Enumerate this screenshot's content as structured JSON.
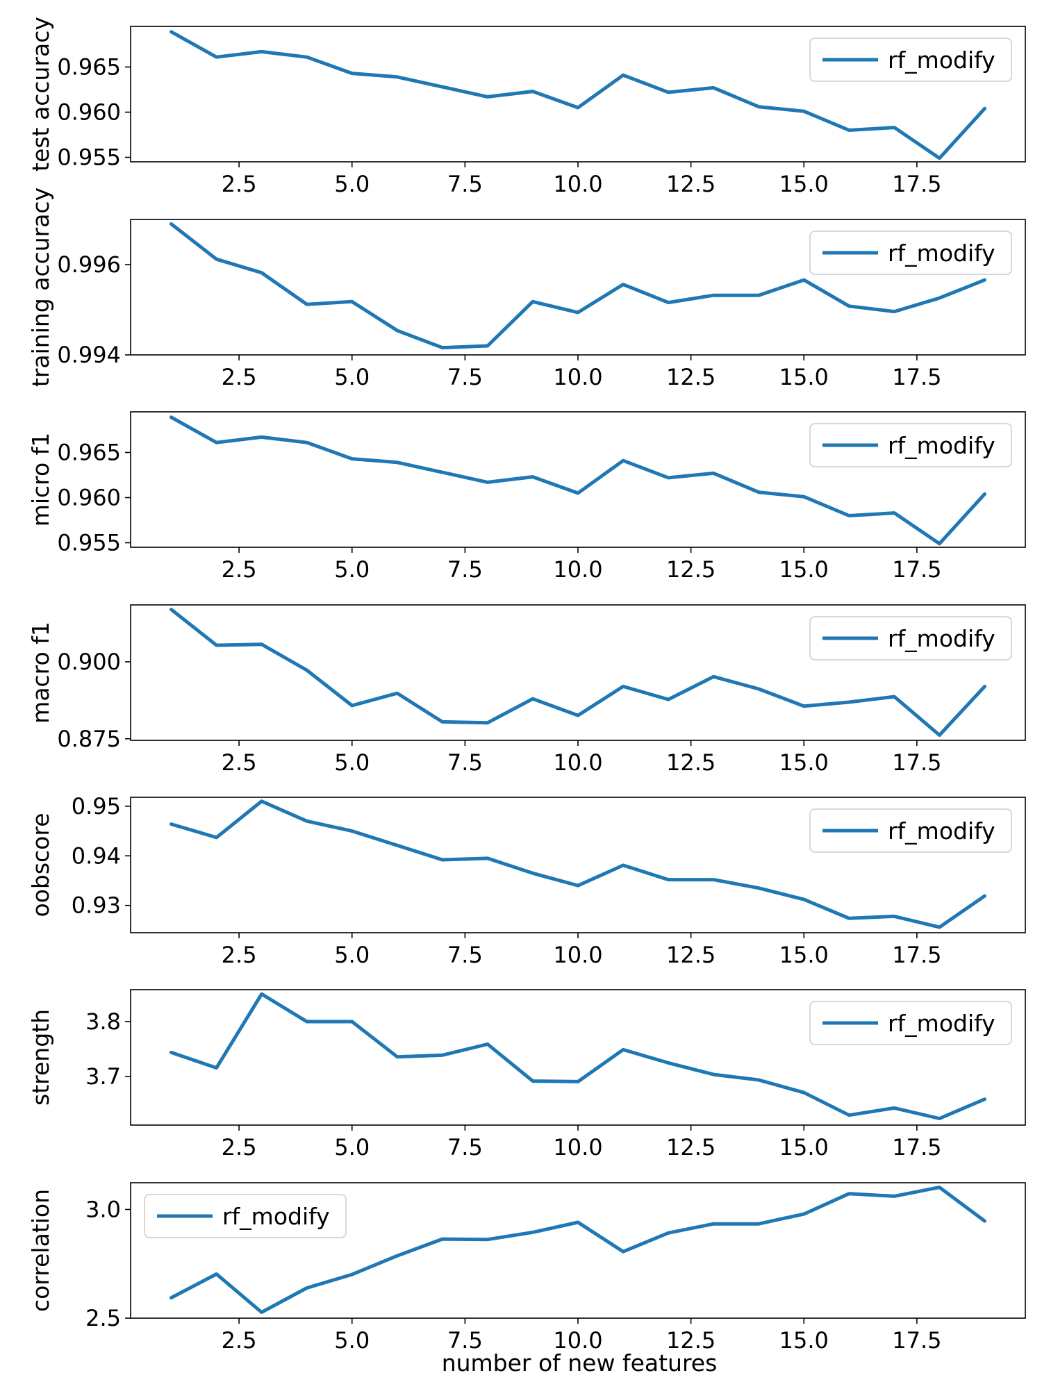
{
  "figure": {
    "xlabel": "number of new features"
  },
  "chart_data": [
    {
      "type": "line",
      "ylabel": "test accuracy",
      "xlim": [
        0.1,
        19.9
      ],
      "ylim": [
        0.9545,
        0.9695
      ],
      "xticks": [
        2.5,
        5.0,
        7.5,
        10.0,
        12.5,
        15.0,
        17.5
      ],
      "xtick_labels": [
        "2.5",
        "5.0",
        "7.5",
        "10.0",
        "12.5",
        "15.0",
        "17.5"
      ],
      "yticks": [
        0.955,
        0.96,
        0.965
      ],
      "ytick_labels": [
        "0.955",
        "0.960",
        "0.965"
      ],
      "legend_position": "upper right",
      "grid": false,
      "series": [
        {
          "name": "rf_modify",
          "color": "#1f77b4",
          "x": [
            1,
            2,
            3,
            4,
            5,
            6,
            7,
            8,
            9,
            10,
            11,
            12,
            13,
            14,
            15,
            16,
            17,
            18,
            19
          ],
          "y": [
            0.9689,
            0.9661,
            0.9667,
            0.9661,
            0.9643,
            0.9639,
            0.9628,
            0.9617,
            0.9623,
            0.9605,
            0.9641,
            0.9622,
            0.9627,
            0.9606,
            0.9601,
            0.958,
            0.9583,
            0.9549,
            0.9604
          ]
        }
      ]
    },
    {
      "type": "line",
      "ylabel": "training accuracy",
      "xlim": [
        0.1,
        19.9
      ],
      "ylim": [
        0.994,
        0.997
      ],
      "xticks": [
        2.5,
        5.0,
        7.5,
        10.0,
        12.5,
        15.0,
        17.5
      ],
      "xtick_labels": [
        "2.5",
        "5.0",
        "7.5",
        "10.0",
        "12.5",
        "15.0",
        "17.5"
      ],
      "yticks": [
        0.994,
        0.996
      ],
      "ytick_labels": [
        "0.994",
        "0.996"
      ],
      "legend_position": "upper right",
      "grid": false,
      "series": [
        {
          "name": "rf_modify",
          "color": "#1f77b4",
          "x": [
            1,
            2,
            3,
            4,
            5,
            6,
            7,
            8,
            9,
            10,
            11,
            12,
            13,
            14,
            15,
            16,
            17,
            18,
            19
          ],
          "y": [
            0.9969,
            0.99612,
            0.99582,
            0.99512,
            0.99518,
            0.99454,
            0.99416,
            0.9942,
            0.99518,
            0.99494,
            0.99556,
            0.99516,
            0.99532,
            0.99532,
            0.99566,
            0.99508,
            0.99496,
            0.99526,
            0.99566
          ]
        }
      ]
    },
    {
      "type": "line",
      "ylabel": "micro f1",
      "xlim": [
        0.1,
        19.9
      ],
      "ylim": [
        0.9545,
        0.9695
      ],
      "xticks": [
        2.5,
        5.0,
        7.5,
        10.0,
        12.5,
        15.0,
        17.5
      ],
      "xtick_labels": [
        "2.5",
        "5.0",
        "7.5",
        "10.0",
        "12.5",
        "15.0",
        "17.5"
      ],
      "yticks": [
        0.955,
        0.96,
        0.965
      ],
      "ytick_labels": [
        "0.955",
        "0.960",
        "0.965"
      ],
      "legend_position": "upper right",
      "grid": false,
      "series": [
        {
          "name": "rf_modify",
          "color": "#1f77b4",
          "x": [
            1,
            2,
            3,
            4,
            5,
            6,
            7,
            8,
            9,
            10,
            11,
            12,
            13,
            14,
            15,
            16,
            17,
            18,
            19
          ],
          "y": [
            0.9689,
            0.9661,
            0.9667,
            0.9661,
            0.9643,
            0.9639,
            0.9628,
            0.9617,
            0.9623,
            0.9605,
            0.9641,
            0.9622,
            0.9627,
            0.9606,
            0.9601,
            0.958,
            0.9583,
            0.9549,
            0.9604
          ]
        }
      ]
    },
    {
      "type": "line",
      "ylabel": "macro f1",
      "xlim": [
        0.1,
        19.9
      ],
      "ylim": [
        0.8745,
        0.9185
      ],
      "xticks": [
        2.5,
        5.0,
        7.5,
        10.0,
        12.5,
        15.0,
        17.5
      ],
      "xtick_labels": [
        "2.5",
        "5.0",
        "7.5",
        "10.0",
        "12.5",
        "15.0",
        "17.5"
      ],
      "yticks": [
        0.875,
        0.9
      ],
      "ytick_labels": [
        "0.875",
        "0.900"
      ],
      "legend_position": "upper right",
      "grid": false,
      "series": [
        {
          "name": "rf_modify",
          "color": "#1f77b4",
          "x": [
            1,
            2,
            3,
            4,
            5,
            6,
            7,
            8,
            9,
            10,
            11,
            12,
            13,
            14,
            15,
            16,
            17,
            18,
            19
          ],
          "y": [
            0.917,
            0.9054,
            0.9057,
            0.8973,
            0.8858,
            0.8898,
            0.8805,
            0.8802,
            0.888,
            0.8826,
            0.892,
            0.8878,
            0.8952,
            0.8912,
            0.8856,
            0.8869,
            0.8887,
            0.8762,
            0.892
          ]
        }
      ]
    },
    {
      "type": "line",
      "ylabel": "oobscore",
      "xlim": [
        0.1,
        19.9
      ],
      "ylim": [
        0.9245,
        0.9518
      ],
      "xticks": [
        2.5,
        5.0,
        7.5,
        10.0,
        12.5,
        15.0,
        17.5
      ],
      "xtick_labels": [
        "2.5",
        "5.0",
        "7.5",
        "10.0",
        "12.5",
        "15.0",
        "17.5"
      ],
      "yticks": [
        0.93,
        0.94,
        0.95
      ],
      "ytick_labels": [
        "0.93",
        "0.94",
        "0.95"
      ],
      "legend_position": "upper right",
      "grid": false,
      "series": [
        {
          "name": "rf_modify",
          "color": "#1f77b4",
          "x": [
            1,
            2,
            3,
            4,
            5,
            6,
            7,
            8,
            9,
            10,
            11,
            12,
            13,
            14,
            15,
            16,
            17,
            18,
            19
          ],
          "y": [
            0.9464,
            0.9437,
            0.951,
            0.947,
            0.945,
            0.9421,
            0.9392,
            0.9395,
            0.9365,
            0.934,
            0.9381,
            0.9352,
            0.9352,
            0.9335,
            0.9312,
            0.9274,
            0.9278,
            0.9256,
            0.9319
          ]
        }
      ]
    },
    {
      "type": "line",
      "ylabel": "strength",
      "xlim": [
        0.1,
        19.9
      ],
      "ylim": [
        3.612,
        3.858
      ],
      "xticks": [
        2.5,
        5.0,
        7.5,
        10.0,
        12.5,
        15.0,
        17.5
      ],
      "xtick_labels": [
        "2.5",
        "5.0",
        "7.5",
        "10.0",
        "12.5",
        "15.0",
        "17.5"
      ],
      "yticks": [
        3.7,
        3.8
      ],
      "ytick_labels": [
        "3.7",
        "3.8"
      ],
      "legend_position": "upper right",
      "grid": false,
      "series": [
        {
          "name": "rf_modify",
          "color": "#1f77b4",
          "x": [
            1,
            2,
            3,
            4,
            5,
            6,
            7,
            8,
            9,
            10,
            11,
            12,
            13,
            14,
            15,
            16,
            17,
            18,
            19
          ],
          "y": [
            3.744,
            3.716,
            3.85,
            3.8,
            3.8,
            3.736,
            3.739,
            3.759,
            3.692,
            3.691,
            3.749,
            3.725,
            3.704,
            3.694,
            3.671,
            3.63,
            3.643,
            3.624,
            3.659
          ]
        }
      ]
    },
    {
      "type": "line",
      "ylabel": "correlation",
      "xlim": [
        0.1,
        19.9
      ],
      "ylim": [
        2.5,
        3.123
      ],
      "xticks": [
        2.5,
        5.0,
        7.5,
        10.0,
        12.5,
        15.0,
        17.5
      ],
      "xtick_labels": [
        "2.5",
        "5.0",
        "7.5",
        "10.0",
        "12.5",
        "15.0",
        "17.5"
      ],
      "yticks": [
        2.5,
        3.0
      ],
      "ytick_labels": [
        "2.5",
        "3.0"
      ],
      "legend_position": "upper left",
      "grid": false,
      "series": [
        {
          "name": "rf_modify",
          "color": "#1f77b4",
          "x": [
            1,
            2,
            3,
            4,
            5,
            6,
            7,
            8,
            9,
            10,
            11,
            12,
            13,
            14,
            15,
            16,
            17,
            18,
            19
          ],
          "y": [
            2.594,
            2.703,
            2.527,
            2.639,
            2.701,
            2.787,
            2.864,
            2.862,
            2.895,
            2.941,
            2.806,
            2.892,
            2.934,
            2.934,
            2.979,
            3.073,
            3.061,
            3.102,
            2.947
          ]
        }
      ]
    }
  ]
}
